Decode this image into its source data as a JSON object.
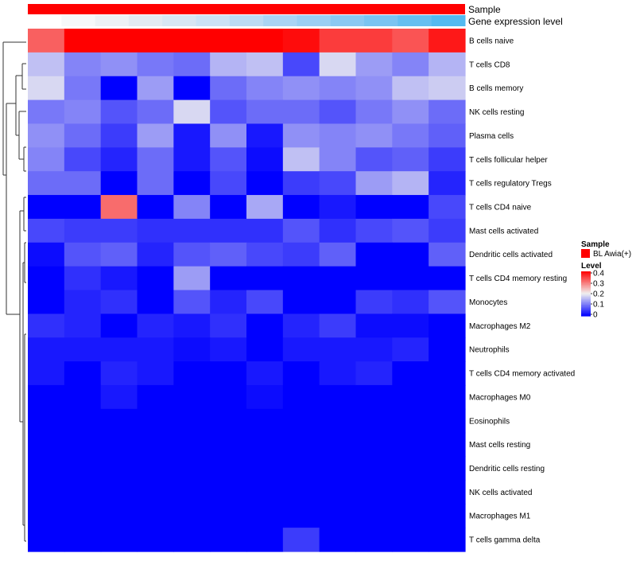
{
  "chart_data": {
    "type": "heatmap",
    "annotation_tracks": [
      "Sample",
      "Gene expression level"
    ],
    "sample_annotation_color": "#ff0000",
    "expression_track": [
      "#ffffff",
      "#f6f8fa",
      "#edf1f5",
      "#e3eaf2",
      "#d8e6f3",
      "#cce2f5",
      "#bcdbf4",
      "#aad4f4",
      "#9bcff3",
      "#8bc9f2",
      "#7ac4f1",
      "#66bff0",
      "#53baf0"
    ],
    "rows": [
      "B cells naive",
      "T cells CD8",
      "B cells memory",
      "NK cells resting",
      "Plasma cells",
      "T cells follicular helper",
      "T cells regulatory  Tregs",
      "T cells CD4 naive",
      "Mast cells activated",
      "Dendritic cells activated",
      "T cells CD4 memory resting",
      "Monocytes",
      "Macrophages M2",
      "Neutrophils",
      "T cells CD4 memory activated",
      "Macrophages M0",
      "Eosinophils",
      "Mast cells resting",
      "Dendritic cells resting",
      "NK cells activated",
      "Macrophages M1",
      "T cells gamma delta"
    ],
    "values": [
      [
        0.32,
        0.44,
        0.42,
        0.4,
        0.45,
        0.43,
        0.45,
        0.39,
        0.35,
        0.35,
        0.33,
        0.38
      ],
      [
        0.16,
        0.11,
        0.12,
        0.1,
        0.09,
        0.15,
        0.16,
        0.06,
        0.18,
        0.13,
        0.11,
        0.15
      ],
      [
        0.18,
        0.1,
        0.0,
        0.13,
        0.0,
        0.09,
        0.11,
        0.12,
        0.11,
        0.12,
        0.16,
        0.17
      ],
      [
        0.1,
        0.11,
        0.07,
        0.09,
        0.18,
        0.07,
        0.09,
        0.09,
        0.07,
        0.1,
        0.12,
        0.09
      ],
      [
        0.12,
        0.09,
        0.05,
        0.13,
        0.02,
        0.12,
        0.02,
        0.12,
        0.11,
        0.12,
        0.1,
        0.08
      ],
      [
        0.11,
        0.06,
        0.03,
        0.09,
        0.02,
        0.07,
        0.01,
        0.16,
        0.11,
        0.07,
        0.08,
        0.05
      ],
      [
        0.09,
        0.09,
        0.0,
        0.09,
        0.0,
        0.06,
        0.0,
        0.05,
        0.06,
        0.13,
        0.15,
        0.03
      ],
      [
        0.0,
        0.0,
        0.31,
        0.0,
        0.11,
        0.0,
        0.14,
        0.0,
        0.02,
        0.0,
        0.0,
        0.06
      ],
      [
        0.06,
        0.05,
        0.05,
        0.04,
        0.04,
        0.04,
        0.04,
        0.07,
        0.04,
        0.06,
        0.07,
        0.05
      ],
      [
        0.01,
        0.07,
        0.08,
        0.03,
        0.07,
        0.08,
        0.06,
        0.05,
        0.08,
        0.0,
        0.0,
        0.08
      ],
      [
        0.0,
        0.04,
        0.02,
        0.0,
        0.13,
        0.0,
        0.0,
        0.0,
        0.0,
        0.0,
        0.0,
        0.0
      ],
      [
        0.0,
        0.03,
        0.04,
        0.0,
        0.07,
        0.03,
        0.06,
        0.0,
        0.0,
        0.05,
        0.04,
        0.07
      ],
      [
        0.04,
        0.03,
        0.0,
        0.03,
        0.02,
        0.04,
        0.0,
        0.03,
        0.05,
        0.01,
        0.01,
        0.0
      ],
      [
        0.02,
        0.02,
        0.02,
        0.02,
        0.01,
        0.02,
        0.0,
        0.02,
        0.02,
        0.02,
        0.03,
        0.0
      ],
      [
        0.02,
        0.0,
        0.03,
        0.02,
        0.0,
        0.0,
        0.02,
        0.0,
        0.02,
        0.03,
        0.0,
        0.0
      ],
      [
        0.0,
        0.0,
        0.02,
        0.0,
        0.0,
        0.0,
        0.01,
        0.0,
        0.0,
        0.0,
        0.0,
        0.0
      ],
      [
        0,
        0,
        0,
        0,
        0,
        0,
        0,
        0,
        0,
        0,
        0,
        0
      ],
      [
        0,
        0,
        0,
        0,
        0,
        0,
        0,
        0,
        0,
        0,
        0,
        0
      ],
      [
        0,
        0,
        0,
        0,
        0,
        0,
        0,
        0,
        0,
        0,
        0,
        0
      ],
      [
        0,
        0,
        0,
        0,
        0,
        0,
        0,
        0,
        0,
        0,
        0,
        0
      ],
      [
        0,
        0,
        0,
        0,
        0,
        0,
        0,
        0,
        0,
        0,
        0,
        0
      ],
      [
        0,
        0,
        0,
        0,
        0,
        0,
        0,
        0.05,
        0,
        0,
        0,
        0
      ]
    ],
    "color_scale": {
      "min": 0,
      "mid": 0.2,
      "max": 0.4,
      "low_color": "#0000ff",
      "mid_color": "#f0f0f0",
      "high_color": "#ff0000"
    },
    "legend": {
      "placement": "right",
      "sample_title": "Sample",
      "sample_entry": "BL Awia(+)",
      "level_title": "Level",
      "ticks": [
        "0.4",
        "0.3",
        "0.2",
        "0.1",
        "0"
      ]
    }
  }
}
